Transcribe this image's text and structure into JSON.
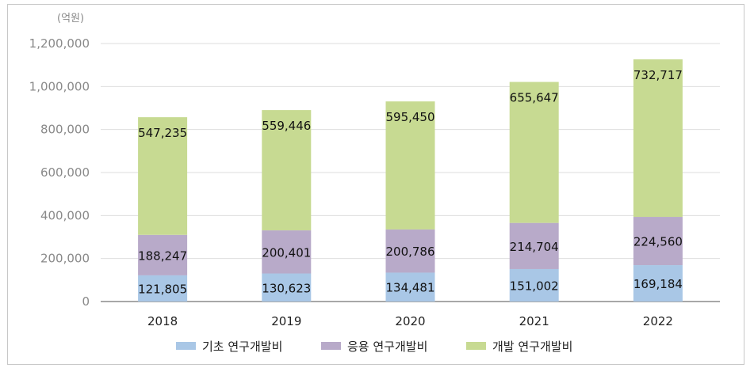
{
  "chart_data": {
    "type": "bar",
    "stacked": true,
    "unit_label": "(억원)",
    "categories": [
      "2018",
      "2019",
      "2020",
      "2021",
      "2022"
    ],
    "series": [
      {
        "name": "기초 연구개발비",
        "color": "#a9c7e6",
        "values": [
          121805,
          130623,
          134481,
          151002,
          169184
        ],
        "labels": [
          "121,805",
          "130,623",
          "134,481",
          "151,002",
          "169,184"
        ]
      },
      {
        "name": "응용 연구개발비",
        "color": "#b8aac9",
        "values": [
          188247,
          200401,
          200786,
          214704,
          224560
        ],
        "labels": [
          "188,247",
          "200,401",
          "200,786",
          "214,704",
          "224,560"
        ]
      },
      {
        "name": "개발 연구개발비",
        "color": "#c7da92",
        "values": [
          547235,
          559446,
          595450,
          655647,
          732717
        ],
        "labels": [
          "547,235",
          "559,446",
          "595,450",
          "655,647",
          "732,717"
        ]
      }
    ],
    "ylim": [
      0,
      1200000
    ],
    "yticks": [
      {
        "value": 0,
        "label": "0"
      },
      {
        "value": 200000,
        "label": "200,000"
      },
      {
        "value": 400000,
        "label": "400,000"
      },
      {
        "value": 600000,
        "label": "600,000"
      },
      {
        "value": 800000,
        "label": "800,000"
      },
      {
        "value": 1000000,
        "label": "1,000,000"
      },
      {
        "value": 1200000,
        "label": "1,200,000"
      }
    ],
    "grid": true,
    "legend_position": "bottom"
  }
}
